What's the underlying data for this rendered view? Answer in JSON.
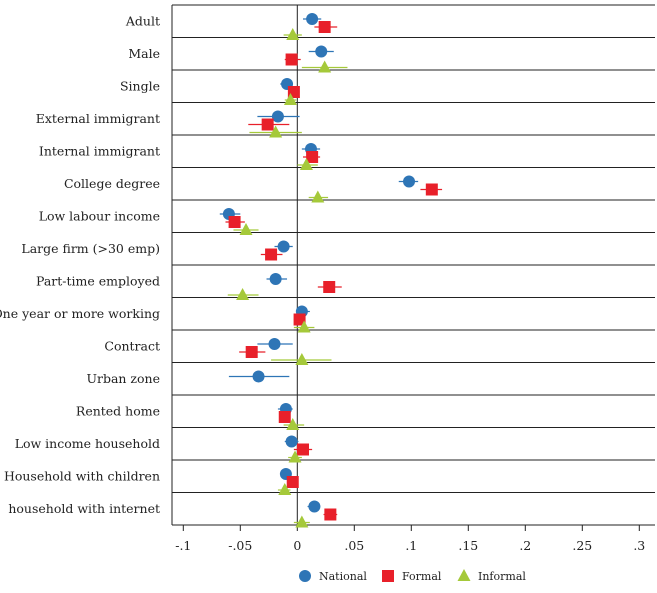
{
  "chart_data": {
    "type": "scatter",
    "title": "",
    "xlabel": "",
    "ylabel": "",
    "xlim": [
      -0.11,
      0.315
    ],
    "xticks": [
      -0.1,
      -0.05,
      0,
      0.05,
      0.1,
      0.15,
      0.2,
      0.25,
      0.3
    ],
    "xtick_labels": [
      "-.1",
      "-.05",
      "0",
      ".05",
      ".1",
      ".15",
      ".2",
      ".25",
      ".3"
    ],
    "grid": "horizontal row separators",
    "legend_position": "bottom",
    "categories": [
      "Adult",
      "Male",
      "Single",
      "External immigrant",
      "Internal immigrant",
      "College degree",
      "Low labour income",
      "Large firm (>30 emp)",
      "Part-time employed",
      "One year or more working",
      "Contract",
      "Urban zone",
      "Rented home",
      "Low income household",
      "Household with children",
      "household with internet"
    ],
    "series": [
      {
        "name": "National",
        "color": "#2e75b6",
        "marker": "circle",
        "values": [
          0.013,
          0.021,
          -0.009,
          -0.017,
          0.012,
          0.098,
          -0.06,
          -0.012,
          -0.019,
          0.004,
          -0.02,
          -0.034,
          -0.01,
          -0.005,
          -0.01,
          0.015
        ],
        "ci": [
          [
            0.005,
            0.021
          ],
          [
            0.01,
            0.032
          ],
          [
            -0.015,
            -0.004
          ],
          [
            -0.035,
            0.002
          ],
          [
            0.004,
            0.02
          ],
          [
            0.089,
            0.106
          ],
          [
            -0.068,
            -0.05
          ],
          [
            -0.02,
            -0.004
          ],
          [
            -0.027,
            -0.009
          ],
          [
            -0.001,
            0.011
          ],
          [
            -0.035,
            -0.004
          ],
          [
            -0.06,
            -0.007
          ],
          [
            -0.017,
            -0.004
          ],
          [
            -0.011,
            0.001
          ],
          [
            -0.014,
            -0.006
          ],
          [
            0.009,
            0.02
          ]
        ]
      },
      {
        "name": "Formal",
        "color": "#e8202a",
        "marker": "square",
        "values": [
          0.024,
          -0.005,
          -0.003,
          -0.026,
          0.013,
          0.118,
          -0.055,
          -0.023,
          0.028,
          0.002,
          -0.04,
          null,
          -0.011,
          0.005,
          -0.004,
          0.029
        ],
        "ci": [
          [
            0.015,
            0.035
          ],
          [
            -0.011,
            0.003
          ],
          [
            -0.007,
            0.002
          ],
          [
            -0.043,
            -0.007
          ],
          [
            0.005,
            0.02
          ],
          [
            0.108,
            0.127
          ],
          [
            -0.063,
            -0.046
          ],
          [
            -0.032,
            -0.013
          ],
          [
            0.018,
            0.039
          ],
          [
            -0.003,
            0.007
          ],
          [
            -0.051,
            -0.028
          ],
          null,
          [
            -0.015,
            -0.007
          ],
          [
            -0.003,
            0.013
          ],
          [
            -0.008,
            0.001
          ],
          [
            0.023,
            0.035
          ]
        ]
      },
      {
        "name": "Informal",
        "color": "#a5c93a",
        "marker": "triangle",
        "values": [
          -0.004,
          0.024,
          -0.006,
          -0.019,
          0.008,
          0.018,
          -0.045,
          null,
          -0.048,
          0.006,
          0.004,
          null,
          -0.004,
          -0.002,
          -0.011,
          0.004
        ],
        "ci": [
          [
            -0.012,
            0.004
          ],
          [
            0.004,
            0.044
          ],
          [
            -0.011,
            -0.001
          ],
          [
            -0.042,
            0.004
          ],
          [
            0.0,
            0.018
          ],
          [
            0.01,
            0.027
          ],
          [
            -0.056,
            -0.034
          ],
          null,
          [
            -0.061,
            -0.034
          ],
          [
            -0.003,
            0.015
          ],
          [
            -0.023,
            0.03
          ],
          null,
          [
            -0.012,
            0.006
          ],
          [
            -0.008,
            0.004
          ],
          [
            -0.017,
            -0.006
          ],
          [
            -0.003,
            0.011
          ]
        ]
      }
    ]
  }
}
